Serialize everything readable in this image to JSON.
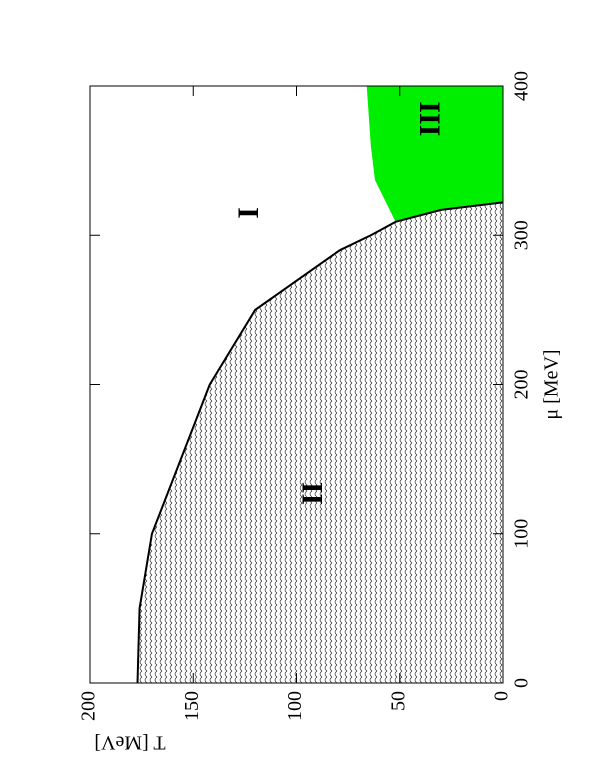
{
  "chart_data": {
    "type": "area",
    "xlabel": "μ [MeV]",
    "ylabel": "T [MeV]",
    "xlim": [
      0,
      400
    ],
    "xticks": [
      0,
      100,
      200,
      300,
      400
    ],
    "ylim": [
      0,
      200
    ],
    "yticks": [
      0,
      50,
      100,
      150,
      200
    ],
    "series": [
      {
        "color": "#555555",
        "fill": "hatch",
        "x": [
          0,
          50,
          100,
          150,
          200,
          250,
          290,
          300,
          309,
          317,
          322
        ],
        "values": [
          177,
          176,
          170,
          156,
          142,
          120,
          79,
          64,
          52,
          30,
          0
        ]
      },
      {
        "color": "#00ee00",
        "fill": "solid",
        "x": [
          309,
          337,
          360,
          400
        ],
        "values": [
          52,
          62,
          64,
          66
        ]
      }
    ],
    "annotations": [
      {
        "text": "I",
        "x": 315,
        "y": 122
      },
      {
        "text": "II",
        "x": 127,
        "y": 91
      },
      {
        "text": "III",
        "x": 378,
        "y": 34
      }
    ]
  }
}
